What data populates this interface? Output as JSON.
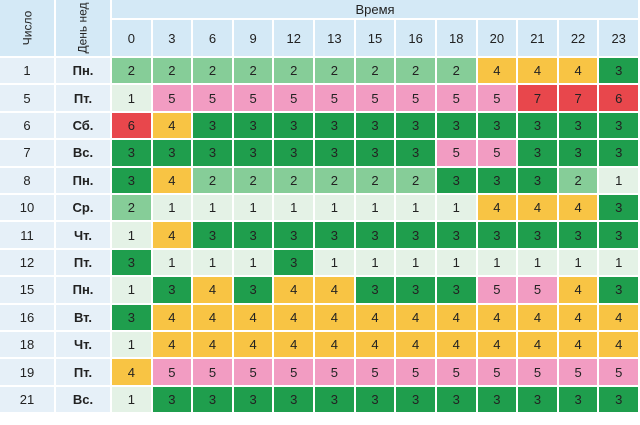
{
  "header": {
    "number": "Число",
    "weekday": "День нед",
    "time": "Время",
    "hours": [
      0,
      3,
      6,
      9,
      12,
      13,
      15,
      16,
      18,
      20,
      21,
      22,
      23
    ]
  },
  "cell_colors": {
    "1": "#e4f2e6",
    "2": "#86cd98",
    "3": "#1f9e4d",
    "4": "#f8c444",
    "5": "#f29cc2",
    "6": "#e8474c",
    "7": "#e8474c"
  },
  "table": {
    "rows": [
      [
        "1",
        "Пн.",
        2,
        2,
        2,
        2,
        2,
        2,
        2,
        2,
        2,
        4,
        4,
        4,
        3
      ],
      [
        "5",
        "Пт.",
        1,
        5,
        5,
        5,
        5,
        5,
        5,
        5,
        5,
        5,
        7,
        7,
        6
      ],
      [
        "6",
        "Сб.",
        6,
        4,
        3,
        3,
        3,
        3,
        3,
        3,
        3,
        3,
        3,
        3,
        3
      ],
      [
        "7",
        "Вс.",
        3,
        3,
        3,
        3,
        3,
        3,
        3,
        3,
        5,
        5,
        3,
        3,
        3
      ],
      [
        "8",
        "Пн.",
        3,
        4,
        2,
        2,
        2,
        2,
        2,
        2,
        3,
        3,
        3,
        2,
        1
      ],
      [
        "10",
        "Ср.",
        2,
        1,
        1,
        1,
        1,
        1,
        1,
        1,
        1,
        4,
        4,
        4,
        3
      ],
      [
        "11",
        "Чт.",
        1,
        4,
        3,
        3,
        3,
        3,
        3,
        3,
        3,
        3,
        3,
        3,
        3
      ],
      [
        "12",
        "Пт.",
        3,
        1,
        1,
        1,
        3,
        1,
        1,
        1,
        1,
        1,
        1,
        1,
        1
      ],
      [
        "15",
        "Пн.",
        1,
        3,
        4,
        3,
        4,
        4,
        3,
        3,
        3,
        5,
        5,
        4,
        3
      ],
      [
        "16",
        "Вт.",
        3,
        4,
        4,
        4,
        4,
        4,
        4,
        4,
        4,
        4,
        4,
        4,
        4
      ],
      [
        "18",
        "Чт.",
        1,
        4,
        4,
        4,
        4,
        4,
        4,
        4,
        4,
        4,
        4,
        4,
        4
      ],
      [
        "19",
        "Пт.",
        4,
        5,
        5,
        5,
        5,
        5,
        5,
        5,
        5,
        5,
        5,
        5,
        5
      ],
      [
        "21",
        "Вс.",
        1,
        3,
        3,
        3,
        3,
        3,
        3,
        3,
        3,
        3,
        3,
        3,
        3
      ]
    ]
  }
}
